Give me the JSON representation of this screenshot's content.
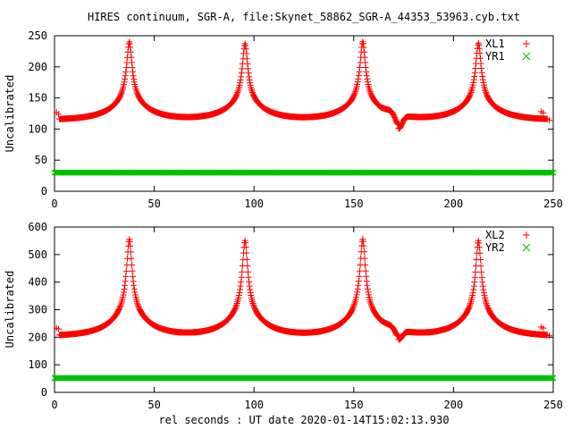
{
  "title": "HIRES continuum, SGR-A, file:Skynet_58862_SGR-A_44353_53963.cyb.txt",
  "colors": {
    "red": "#ff0000",
    "green": "#00c000",
    "axis": "#000000"
  },
  "chart_data": [
    {
      "type": "scatter",
      "ylabel": "Uncalibrated",
      "xlim": [
        0,
        250
      ],
      "ylim": [
        0,
        250
      ],
      "xticks": [
        0,
        50,
        100,
        150,
        200,
        250
      ],
      "yticks": [
        0,
        50,
        100,
        150,
        200,
        250
      ],
      "legend_position": "top-right",
      "series": [
        {
          "name": "XL1",
          "marker": "plus",
          "color": "#ff0000",
          "baseline": 115,
          "peaks": [
            {
              "x": 37.5,
              "height": 240
            },
            {
              "x": 95.5,
              "height": 237
            },
            {
              "x": 154.5,
              "height": 240
            },
            {
              "x": 212.5,
              "height": 238
            }
          ],
          "dip": {
            "x": 172.5,
            "value": 93
          },
          "outliers": [
            {
              "x": 1,
              "y": 127
            },
            {
              "x": 2,
              "y": 124
            },
            {
              "x": 244,
              "y": 128
            },
            {
              "x": 245,
              "y": 126
            },
            {
              "x": 248,
              "y": 114
            }
          ]
        },
        {
          "name": "YR1",
          "marker": "cross",
          "color": "#00c000",
          "constant": 30
        }
      ]
    },
    {
      "type": "scatter",
      "ylabel": "Uncalibrated",
      "xlabel": "rel seconds : UT date 2020-01-14T15:02:13.930",
      "xlim": [
        0,
        250
      ],
      "ylim": [
        0,
        600
      ],
      "xticks": [
        0,
        50,
        100,
        150,
        200,
        250
      ],
      "yticks": [
        0,
        100,
        200,
        300,
        400,
        500,
        600
      ],
      "legend_position": "top-right",
      "series": [
        {
          "name": "XL2",
          "marker": "plus",
          "color": "#ff0000",
          "baseline": 205,
          "peaks": [
            {
              "x": 37.5,
              "height": 555
            },
            {
              "x": 95.5,
              "height": 550
            },
            {
              "x": 154.5,
              "height": 555
            },
            {
              "x": 212.5,
              "height": 550
            }
          ],
          "dip": {
            "x": 172.5,
            "value": 170
          },
          "outliers": [
            {
              "x": 1,
              "y": 233
            },
            {
              "x": 2,
              "y": 230
            },
            {
              "x": 244,
              "y": 237
            },
            {
              "x": 245,
              "y": 233
            },
            {
              "x": 248,
              "y": 205
            }
          ]
        },
        {
          "name": "YR2",
          "marker": "cross",
          "color": "#00c000",
          "constant": 52
        }
      ]
    }
  ]
}
